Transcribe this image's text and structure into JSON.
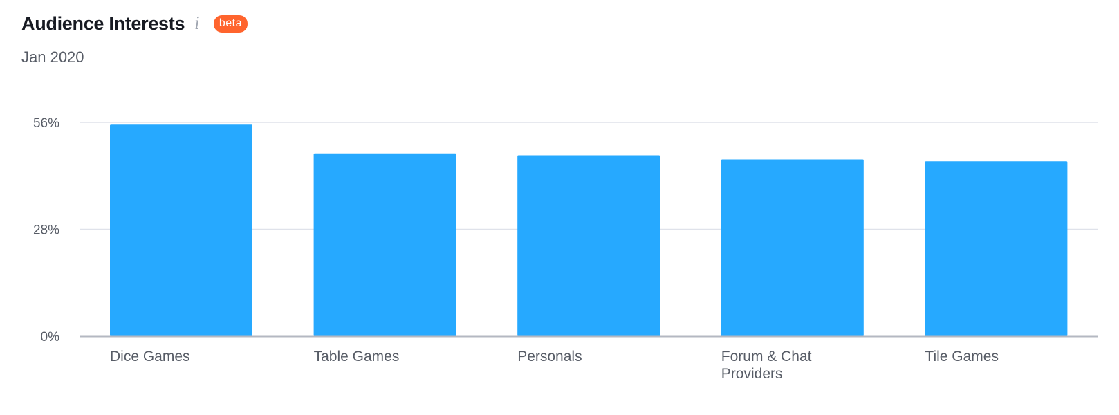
{
  "header": {
    "title": "Audience Interests",
    "info_icon": "info-icon",
    "badge": "beta",
    "subtitle": "Jan 2020"
  },
  "colors": {
    "bar": "#26a9ff",
    "badge": "#ff642d",
    "grid": "#dfe2ea",
    "axis": "#b4b8c2"
  },
  "chart_data": {
    "type": "bar",
    "title": "",
    "xlabel": "",
    "ylabel": "",
    "categories": [
      "Dice Games",
      "Table Games",
      "Personals",
      "Forum & Chat Providers",
      "Tile Games"
    ],
    "category_label_lines": [
      [
        "Dice Games"
      ],
      [
        "Table Games"
      ],
      [
        "Personals"
      ],
      [
        "Forum & Chat",
        "Providers"
      ],
      [
        "Tile Games"
      ]
    ],
    "values": [
      55.4,
      47.9,
      47.4,
      46.3,
      45.8
    ],
    "ylim": [
      0,
      56
    ],
    "yticks": [
      0,
      28,
      56
    ],
    "ytick_labels": [
      "0%",
      "28%",
      "56%"
    ],
    "grid": true,
    "legend": "none"
  }
}
